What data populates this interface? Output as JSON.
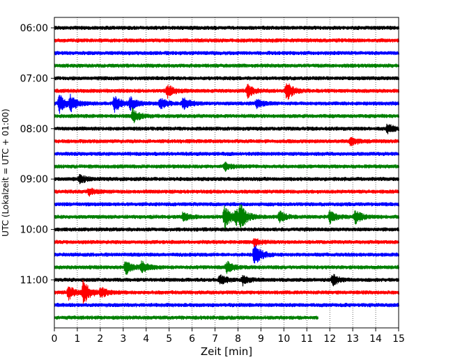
{
  "chart_data": {
    "type": "line",
    "title": "",
    "xlabel": "Zeit  [min]",
    "ylabel": "UTC (Lokalzeit = UTC + 01:00)",
    "xlim": [
      0,
      15
    ],
    "x_ticks": [
      0,
      1,
      2,
      3,
      4,
      5,
      6,
      7,
      8,
      9,
      10,
      11,
      12,
      13,
      14,
      15
    ],
    "y_tick_labels": [
      "06:00",
      "07:00",
      "08:00",
      "09:00",
      "10:00",
      "11:00"
    ],
    "y_tick_traces": [
      0,
      4,
      8,
      12,
      16,
      20
    ],
    "minutes_per_trace": 15,
    "grid": "vertical dotted",
    "color_cycle": [
      "#000000",
      "#ff0000",
      "#0000ff",
      "#008000"
    ],
    "traces": [
      {
        "start": "06:00",
        "end_minute": 15,
        "events": []
      },
      {
        "start": "06:15",
        "end_minute": 15,
        "events": []
      },
      {
        "start": "06:30",
        "end_minute": 15,
        "events": []
      },
      {
        "start": "06:45",
        "end_minute": 15,
        "events": []
      },
      {
        "start": "07:00",
        "end_minute": 15,
        "events": []
      },
      {
        "start": "07:15",
        "end_minute": 15,
        "events": [
          {
            "t": 4.9,
            "amp": 0.6
          },
          {
            "t": 8.4,
            "amp": 0.55
          },
          {
            "t": 10.1,
            "amp": 0.85
          }
        ]
      },
      {
        "start": "07:30",
        "end_minute": 15,
        "events": [
          {
            "t": 0.2,
            "amp": 0.8
          },
          {
            "t": 0.7,
            "amp": 0.6
          },
          {
            "t": 2.6,
            "amp": 0.8
          },
          {
            "t": 3.3,
            "amp": 0.5
          },
          {
            "t": 4.6,
            "amp": 0.5
          },
          {
            "t": 5.6,
            "amp": 0.5
          },
          {
            "t": 8.8,
            "amp": 0.35
          }
        ]
      },
      {
        "start": "07:45",
        "end_minute": 15,
        "events": [
          {
            "t": 3.4,
            "amp": 0.6
          }
        ]
      },
      {
        "start": "08:00",
        "end_minute": 15,
        "events": [
          {
            "t": 14.5,
            "amp": 0.4
          }
        ]
      },
      {
        "start": "08:15",
        "end_minute": 15,
        "events": [
          {
            "t": 12.9,
            "amp": 0.4
          }
        ]
      },
      {
        "start": "08:30",
        "end_minute": 15,
        "events": []
      },
      {
        "start": "08:45",
        "end_minute": 15,
        "events": [
          {
            "t": 7.4,
            "amp": 0.35
          }
        ]
      },
      {
        "start": "09:00",
        "end_minute": 15,
        "events": [
          {
            "t": 1.1,
            "amp": 0.35
          }
        ]
      },
      {
        "start": "09:15",
        "end_minute": 15,
        "events": [
          {
            "t": 1.5,
            "amp": 0.3
          }
        ]
      },
      {
        "start": "09:30",
        "end_minute": 15,
        "events": []
      },
      {
        "start": "09:45",
        "end_minute": 15,
        "events": [
          {
            "t": 5.6,
            "amp": 0.4
          },
          {
            "t": 7.4,
            "amp": 1.0
          },
          {
            "t": 7.9,
            "amp": 0.7
          },
          {
            "t": 8.1,
            "amp": 0.8
          },
          {
            "t": 9.8,
            "amp": 0.5
          },
          {
            "t": 12.0,
            "amp": 0.5
          },
          {
            "t": 13.1,
            "amp": 0.6
          }
        ]
      },
      {
        "start": "10:00",
        "end_minute": 15,
        "events": []
      },
      {
        "start": "10:15",
        "end_minute": 15,
        "events": [
          {
            "t": 8.7,
            "amp": 0.35
          }
        ]
      },
      {
        "start": "10:30",
        "end_minute": 15,
        "events": [
          {
            "t": 8.7,
            "amp": 1.0
          }
        ]
      },
      {
        "start": "10:45",
        "end_minute": 15,
        "events": [
          {
            "t": 3.1,
            "amp": 0.6
          },
          {
            "t": 3.8,
            "amp": 0.45
          },
          {
            "t": 7.5,
            "amp": 0.5
          }
        ]
      },
      {
        "start": "11:00",
        "end_minute": 15,
        "events": [
          {
            "t": 7.2,
            "amp": 0.4
          },
          {
            "t": 8.2,
            "amp": 0.4
          },
          {
            "t": 12.1,
            "amp": 0.5
          }
        ]
      },
      {
        "start": "11:15",
        "end_minute": 15,
        "events": [
          {
            "t": 0.6,
            "amp": 0.6
          },
          {
            "t": 1.25,
            "amp": 1.0
          },
          {
            "t": 2.0,
            "amp": 0.4
          }
        ]
      },
      {
        "start": "11:30",
        "end_minute": 15,
        "events": []
      },
      {
        "start": "11:45",
        "end_minute": 11.5,
        "events": []
      }
    ]
  }
}
